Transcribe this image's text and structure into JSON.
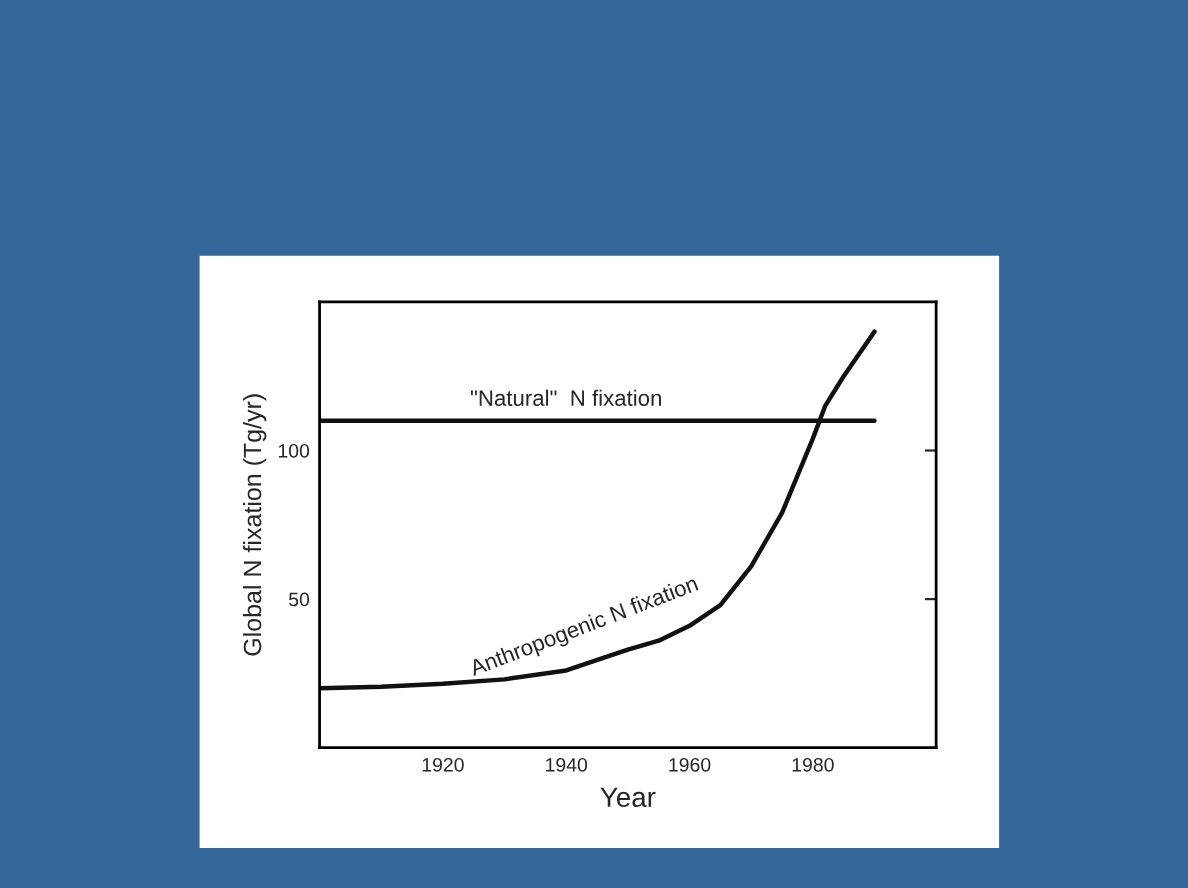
{
  "chart_data": {
    "type": "line",
    "xlabel": "Year",
    "ylabel": "Global N fixation (Tg/yr)",
    "series": [
      {
        "color": "#111111",
        "x": [
          1900,
          1990
        ],
        "values": [
          110,
          110
        ]
      },
      {
        "color": "#111111",
        "x": [
          1900,
          1910,
          1920,
          1930,
          1940,
          1950,
          1955,
          1960,
          1965,
          1970,
          1975,
          1978,
          1980,
          1982,
          1985,
          1988,
          1990
        ],
        "values": [
          20,
          20.5,
          21.5,
          23,
          26,
          33,
          36,
          41,
          48,
          61,
          79,
          94,
          104,
          115,
          125,
          134,
          140
        ]
      }
    ],
    "annotations": [
      "\"Natural\"  N fixation",
      "Anthropogenic N fixation"
    ],
    "xlim": [
      1900,
      2000
    ],
    "xticks": [
      1920,
      1940,
      1960,
      1980
    ],
    "ylim": [
      0,
      150
    ],
    "yticks": [
      50,
      100
    ],
    "grid": false,
    "legend": false
  }
}
